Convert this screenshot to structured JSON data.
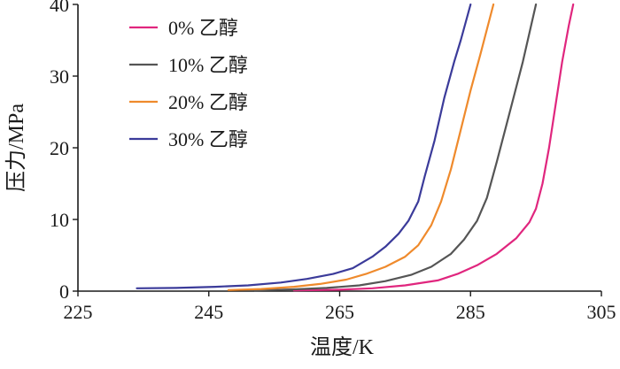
{
  "chart_data": {
    "type": "line",
    "xlabel": "温度/K",
    "ylabel": "压力/MPa",
    "xlim": [
      225,
      305
    ],
    "ylim": [
      0,
      40
    ],
    "xticks": [
      "225",
      "245",
      "265",
      "285",
      "305"
    ],
    "yticks": [
      "0",
      "10",
      "20",
      "30",
      "40"
    ],
    "legend_position": "top-left",
    "series": [
      {
        "name": "0% 乙醇",
        "color": "#e0267e",
        "points": [
          [
            258,
            0.1
          ],
          [
            265,
            0.2
          ],
          [
            270,
            0.4
          ],
          [
            275,
            0.8
          ],
          [
            280,
            1.5
          ],
          [
            283,
            2.4
          ],
          [
            286,
            3.6
          ],
          [
            289,
            5.2
          ],
          [
            292,
            7.4
          ],
          [
            294,
            9.6
          ],
          [
            295,
            11.5
          ],
          [
            296,
            15
          ],
          [
            297,
            20
          ],
          [
            298,
            26
          ],
          [
            299,
            32
          ],
          [
            300,
            37
          ],
          [
            300.7,
            40
          ]
        ]
      },
      {
        "name": "10% 乙醇",
        "color": "#555555",
        "points": [
          [
            252,
            0.1
          ],
          [
            258,
            0.25
          ],
          [
            263,
            0.45
          ],
          [
            268,
            0.8
          ],
          [
            272,
            1.4
          ],
          [
            276,
            2.3
          ],
          [
            279,
            3.4
          ],
          [
            282,
            5.2
          ],
          [
            284,
            7.2
          ],
          [
            286,
            9.8
          ],
          [
            287.5,
            13
          ],
          [
            289,
            18
          ],
          [
            291,
            25
          ],
          [
            293,
            32
          ],
          [
            295,
            40
          ]
        ]
      },
      {
        "name": "20% 乙醇",
        "color": "#ef8a2c",
        "points": [
          [
            248,
            0.15
          ],
          [
            253,
            0.3
          ],
          [
            258,
            0.6
          ],
          [
            262,
            1.0
          ],
          [
            266,
            1.6
          ],
          [
            269,
            2.4
          ],
          [
            272,
            3.4
          ],
          [
            275,
            4.8
          ],
          [
            277,
            6.4
          ],
          [
            279,
            9.2
          ],
          [
            280.5,
            12.5
          ],
          [
            282,
            17
          ],
          [
            283.5,
            22.5
          ],
          [
            285,
            28
          ],
          [
            286.5,
            33
          ],
          [
            288.5,
            40
          ]
        ]
      },
      {
        "name": "30% 乙醇",
        "color": "#3b3b9a",
        "points": [
          [
            234,
            0.4
          ],
          [
            240,
            0.45
          ],
          [
            246,
            0.6
          ],
          [
            251,
            0.8
          ],
          [
            256,
            1.2
          ],
          [
            260,
            1.7
          ],
          [
            264,
            2.4
          ],
          [
            267,
            3.2
          ],
          [
            270,
            4.8
          ],
          [
            272,
            6.2
          ],
          [
            274,
            8.0
          ],
          [
            275.5,
            9.8
          ],
          [
            277,
            12.5
          ],
          [
            278,
            16
          ],
          [
            279.5,
            21
          ],
          [
            281,
            27
          ],
          [
            282.5,
            32
          ],
          [
            283.5,
            35
          ],
          [
            285,
            40
          ]
        ]
      }
    ]
  }
}
